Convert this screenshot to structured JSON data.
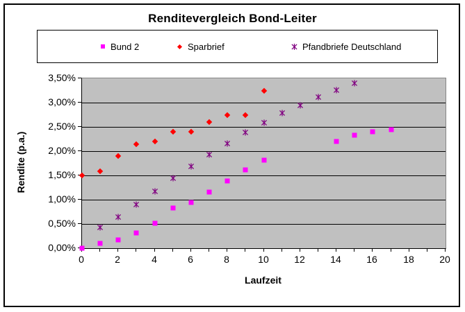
{
  "chart": {
    "title": "Renditevergleich Bond-Leiter",
    "x_axis_title": "Laufzeit",
    "y_axis_title": "Rendite (p.a.)"
  },
  "legend": {
    "items": [
      {
        "label": "Bund 2",
        "marker": "square",
        "color": "#FF00FF"
      },
      {
        "label": "Sparbrief",
        "marker": "diamond",
        "color": "#FF0000"
      },
      {
        "label": "Pfandbriefe Deutschland",
        "marker": "star",
        "color": "#800080"
      }
    ]
  },
  "chart_data": {
    "type": "scatter",
    "title": "Renditevergleich Bond-Leiter",
    "xlabel": "Laufzeit",
    "ylabel": "Rendite (p.a.)",
    "xlim": [
      0,
      20
    ],
    "ylim": [
      0,
      3.5
    ],
    "x_major_tick": 2,
    "x_minor_tick": 1,
    "y_tick": 0.5,
    "x_tick_labels": [
      "0",
      "2",
      "4",
      "6",
      "8",
      "10",
      "12",
      "14",
      "16",
      "18",
      "20"
    ],
    "y_tick_labels": [
      "0,00%",
      "0,50%",
      "1,00%",
      "1,50%",
      "2,00%",
      "2,50%",
      "3,00%",
      "3,50%"
    ],
    "grid": true,
    "legend_position": "top",
    "plot_bg_color": "#C0C0C0",
    "gridline_color": "#000000",
    "plot_border_color": "#848484",
    "series": [
      {
        "name": "Bund 2",
        "marker": "square",
        "color": "#FF00FF",
        "points": [
          [
            0,
            0.0
          ],
          [
            1,
            0.1
          ],
          [
            2,
            0.17
          ],
          [
            3,
            0.32
          ],
          [
            4,
            0.52
          ],
          [
            5,
            0.83
          ],
          [
            6,
            0.95
          ],
          [
            7,
            1.16
          ],
          [
            8,
            1.39
          ],
          [
            9,
            1.62
          ],
          [
            10,
            1.82
          ],
          [
            14,
            2.2
          ],
          [
            15,
            2.33
          ],
          [
            16,
            2.4
          ],
          [
            17,
            2.45
          ]
        ]
      },
      {
        "name": "Sparbrief",
        "marker": "diamond",
        "color": "#FF0000",
        "points": [
          [
            0,
            1.5
          ],
          [
            1,
            1.59
          ],
          [
            2,
            1.9
          ],
          [
            3,
            2.15
          ],
          [
            4,
            2.2
          ],
          [
            5,
            2.4
          ],
          [
            6,
            2.4
          ],
          [
            7,
            2.6
          ],
          [
            8,
            2.75
          ],
          [
            9,
            2.75
          ],
          [
            10,
            3.25
          ]
        ]
      },
      {
        "name": "Pfandbriefe Deutschland",
        "marker": "star",
        "color": "#800080",
        "points": [
          [
            1,
            0.43
          ],
          [
            2,
            0.65
          ],
          [
            3,
            0.9
          ],
          [
            4,
            1.17
          ],
          [
            5,
            1.44
          ],
          [
            6,
            1.68
          ],
          [
            7,
            1.93
          ],
          [
            8,
            2.16
          ],
          [
            9,
            2.38
          ],
          [
            10,
            2.58
          ],
          [
            11,
            2.78
          ],
          [
            12,
            2.95
          ],
          [
            13,
            3.11
          ],
          [
            14,
            3.26
          ],
          [
            15,
            3.4
          ]
        ]
      }
    ]
  }
}
